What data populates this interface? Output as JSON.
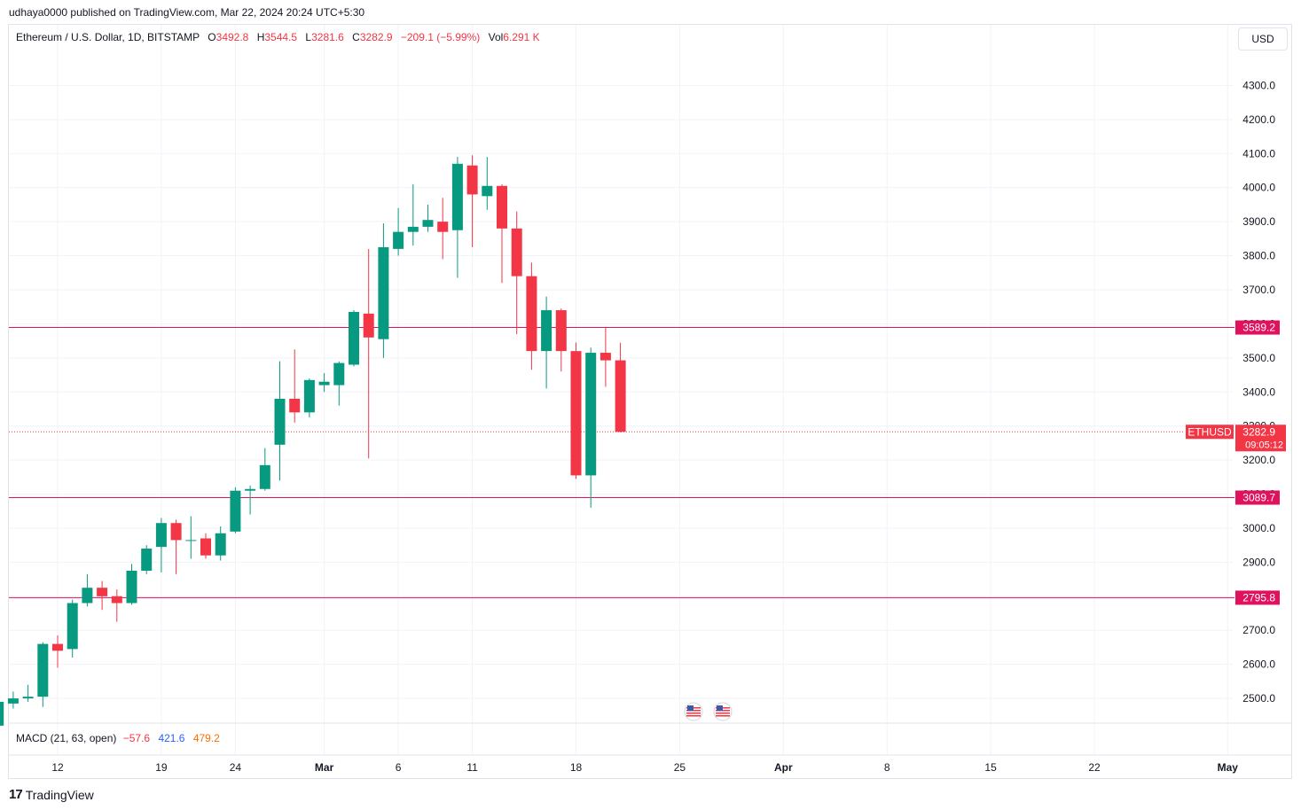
{
  "header": {
    "publish_line": "udhaya0000 published on TradingView.com, Mar 22, 2024 20:24 UTC+5:30"
  },
  "legend": {
    "symbol": "Ethereum / U.S. Dollar, 1D, BITSTAMP",
    "o_label": "O",
    "o_value": "3492.8",
    "h_label": "H",
    "h_value": "3544.5",
    "l_label": "L",
    "l_value": "3281.6",
    "c_label": "C",
    "c_value": "3282.9",
    "change": "−209.1 (−5.99%)",
    "vol_label": "Vol",
    "vol_value": "6.291 K"
  },
  "currency_button": "USD",
  "indicator": {
    "label": "MACD (21, 63, open)",
    "v1": "−57.6",
    "v2": "421.6",
    "v3": "479.2"
  },
  "footer": {
    "brand": "TradingView",
    "logo_mark": "17"
  },
  "colors": {
    "up": "#089981",
    "down": "#f23645",
    "level": "#e0115f",
    "grid": "#f0f3fa",
    "axis_text": "#131722"
  },
  "icons": [
    "us-flag-event-icon",
    "us-flag-event-icon",
    "tradingview-logo-icon"
  ],
  "chart_data": {
    "type": "candlestick",
    "symbol": "ETHUSD",
    "last_price": "3282.9",
    "countdown": "09:05:12",
    "ylim": [
      2430,
      4400
    ],
    "y_ticks": [
      2500,
      2600,
      2700,
      2800,
      2900,
      3000,
      3100,
      3200,
      3300,
      3400,
      3500,
      3600,
      3700,
      3800,
      3900,
      4000,
      4100,
      4200,
      4300
    ],
    "x_ticks": [
      "12",
      "19",
      "24",
      "Mar",
      "6",
      "11",
      "18",
      "25",
      "Apr",
      "8",
      "15",
      "22",
      "May"
    ],
    "x_tick_dates": [
      "2024-02-12",
      "2024-02-19",
      "2024-02-24",
      "2024-03-01",
      "2024-03-06",
      "2024-03-11",
      "2024-03-18",
      "2024-03-25",
      "2024-04-01",
      "2024-04-08",
      "2024-04-15",
      "2024-04-22",
      "2024-05-01"
    ],
    "horizontal_levels": [
      3589.2,
      3089.7,
      2795.8
    ],
    "candles": [
      {
        "date": "2024-02-08",
        "o": 2420,
        "h": 2525,
        "l": 2410,
        "c": 2490
      },
      {
        "date": "2024-02-09",
        "o": 2485,
        "h": 2520,
        "l": 2470,
        "c": 2500
      },
      {
        "date": "2024-02-10",
        "o": 2500,
        "h": 2540,
        "l": 2490,
        "c": 2505
      },
      {
        "date": "2024-02-11",
        "o": 2505,
        "h": 2665,
        "l": 2475,
        "c": 2660
      },
      {
        "date": "2024-02-12",
        "o": 2660,
        "h": 2685,
        "l": 2590,
        "c": 2640
      },
      {
        "date": "2024-02-13",
        "o": 2645,
        "h": 2790,
        "l": 2620,
        "c": 2780
      },
      {
        "date": "2024-02-14",
        "o": 2780,
        "h": 2865,
        "l": 2770,
        "c": 2825
      },
      {
        "date": "2024-02-15",
        "o": 2825,
        "h": 2845,
        "l": 2760,
        "c": 2800
      },
      {
        "date": "2024-02-16",
        "o": 2800,
        "h": 2820,
        "l": 2725,
        "c": 2780
      },
      {
        "date": "2024-02-17",
        "o": 2780,
        "h": 2895,
        "l": 2775,
        "c": 2875
      },
      {
        "date": "2024-02-18",
        "o": 2875,
        "h": 2950,
        "l": 2865,
        "c": 2940
      },
      {
        "date": "2024-02-19",
        "o": 2945,
        "h": 3030,
        "l": 2870,
        "c": 3015
      },
      {
        "date": "2024-02-20",
        "o": 3015,
        "h": 3025,
        "l": 2865,
        "c": 2965
      },
      {
        "date": "2024-02-21",
        "o": 2965,
        "h": 3035,
        "l": 2910,
        "c": 2965
      },
      {
        "date": "2024-02-22",
        "o": 2970,
        "h": 2985,
        "l": 2910,
        "c": 2920
      },
      {
        "date": "2024-02-23",
        "o": 2920,
        "h": 3005,
        "l": 2905,
        "c": 2985
      },
      {
        "date": "2024-02-24",
        "o": 2990,
        "h": 3120,
        "l": 2985,
        "c": 3110
      },
      {
        "date": "2024-02-25",
        "o": 3110,
        "h": 3125,
        "l": 3040,
        "c": 3115
      },
      {
        "date": "2024-02-26",
        "o": 3115,
        "h": 3235,
        "l": 3110,
        "c": 3185
      },
      {
        "date": "2024-02-27",
        "o": 3245,
        "h": 3490,
        "l": 3140,
        "c": 3380
      },
      {
        "date": "2024-02-28",
        "o": 3380,
        "h": 3525,
        "l": 3310,
        "c": 3340
      },
      {
        "date": "2024-02-29",
        "o": 3340,
        "h": 3440,
        "l": 3325,
        "c": 3435
      },
      {
        "date": "2024-03-01",
        "o": 3420,
        "h": 3455,
        "l": 3400,
        "c": 3430
      },
      {
        "date": "2024-03-02",
        "o": 3420,
        "h": 3490,
        "l": 3360,
        "c": 3485
      },
      {
        "date": "2024-03-03",
        "o": 3480,
        "h": 3640,
        "l": 3475,
        "c": 3635
      },
      {
        "date": "2024-03-04",
        "o": 3630,
        "h": 3820,
        "l": 3205,
        "c": 3560
      },
      {
        "date": "2024-03-05",
        "o": 3555,
        "h": 3895,
        "l": 3500,
        "c": 3825
      },
      {
        "date": "2024-03-06",
        "o": 3820,
        "h": 3940,
        "l": 3800,
        "c": 3870
      },
      {
        "date": "2024-03-07",
        "o": 3870,
        "h": 4010,
        "l": 3830,
        "c": 3885
      },
      {
        "date": "2024-03-08",
        "o": 3885,
        "h": 3950,
        "l": 3870,
        "c": 3905
      },
      {
        "date": "2024-03-09",
        "o": 3900,
        "h": 3970,
        "l": 3790,
        "c": 3870
      },
      {
        "date": "2024-03-10",
        "o": 3875,
        "h": 4090,
        "l": 3735,
        "c": 4070
      },
      {
        "date": "2024-03-11",
        "o": 4065,
        "h": 4095,
        "l": 3825,
        "c": 3980
      },
      {
        "date": "2024-03-12",
        "o": 3975,
        "h": 4090,
        "l": 3935,
        "c": 4005
      },
      {
        "date": "2024-03-13",
        "o": 4005,
        "h": 4010,
        "l": 3720,
        "c": 3880
      },
      {
        "date": "2024-03-14",
        "o": 3880,
        "h": 3930,
        "l": 3570,
        "c": 3740
      },
      {
        "date": "2024-03-15",
        "o": 3740,
        "h": 3780,
        "l": 3465,
        "c": 3520
      },
      {
        "date": "2024-03-16",
        "o": 3520,
        "h": 3680,
        "l": 3410,
        "c": 3640
      },
      {
        "date": "2024-03-17",
        "o": 3640,
        "h": 3645,
        "l": 3460,
        "c": 3520
      },
      {
        "date": "2024-03-18",
        "o": 3520,
        "h": 3545,
        "l": 3145,
        "c": 3155
      },
      {
        "date": "2024-03-19",
        "o": 3155,
        "h": 3530,
        "l": 3060,
        "c": 3515
      },
      {
        "date": "2024-03-20",
        "o": 3515,
        "h": 3590,
        "l": 3415,
        "c": 3492.8
      },
      {
        "date": "2024-03-21",
        "o": 3492.8,
        "h": 3544.5,
        "l": 3281.6,
        "c": 3282.9
      }
    ]
  }
}
